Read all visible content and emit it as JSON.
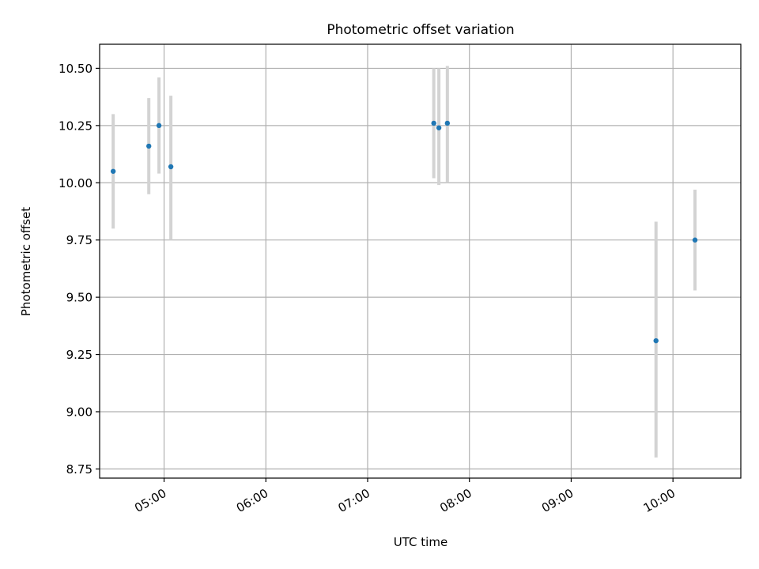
{
  "chart_data": {
    "type": "scatter",
    "title": "Photometric offset variation",
    "xlabel": "UTC time",
    "ylabel": "Photometric offset",
    "x_tick_labels": [
      "05:00",
      "06:00",
      "07:00",
      "08:00",
      "09:00",
      "10:00"
    ],
    "x_tick_minutes": [
      300,
      360,
      420,
      480,
      540,
      600
    ],
    "xlim_minutes": [
      262,
      640
    ],
    "ylim": [
      8.71,
      10.605
    ],
    "y_ticks": [
      8.75,
      9.0,
      9.25,
      9.5,
      9.75,
      10.0,
      10.25,
      10.5
    ],
    "y_tick_labels": [
      "8.75",
      "9.00",
      "9.25",
      "9.50",
      "9.75",
      "10.00",
      "10.25",
      "10.50"
    ],
    "grid": true,
    "series": [
      {
        "marker_color": "#1f77b4",
        "errorbar_color": "#d3d3d3",
        "points": [
          {
            "time": "04:30",
            "y": 10.05,
            "yerr_low": 9.8,
            "yerr_high": 10.3
          },
          {
            "time": "04:51",
            "y": 10.16,
            "yerr_low": 9.95,
            "yerr_high": 10.37
          },
          {
            "time": "04:57",
            "y": 10.25,
            "yerr_low": 10.04,
            "yerr_high": 10.46
          },
          {
            "time": "05:04",
            "y": 10.07,
            "yerr_low": 9.75,
            "yerr_high": 10.38
          },
          {
            "time": "07:39",
            "y": 10.26,
            "yerr_low": 10.02,
            "yerr_high": 10.5
          },
          {
            "time": "07:42",
            "y": 10.24,
            "yerr_low": 9.99,
            "yerr_high": 10.5
          },
          {
            "time": "07:47",
            "y": 10.26,
            "yerr_low": 10.0,
            "yerr_high": 10.51
          },
          {
            "time": "09:50",
            "y": 9.31,
            "yerr_low": 8.8,
            "yerr_high": 9.83
          },
          {
            "time": "10:13",
            "y": 9.75,
            "yerr_low": 9.53,
            "yerr_high": 9.97
          }
        ]
      }
    ]
  }
}
